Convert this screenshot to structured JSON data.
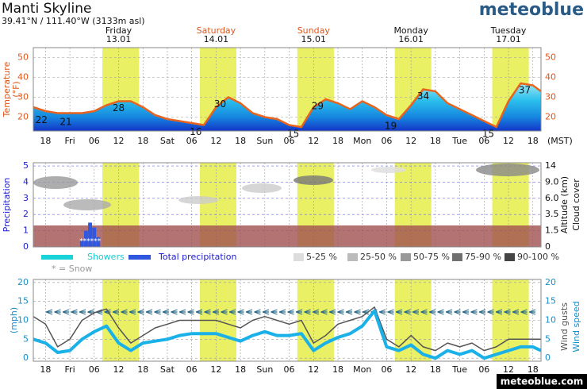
{
  "header": {
    "title": "Manti Skyline",
    "subtitle": "39.41°N / 111.40°W (3133m asl)",
    "brand": "meteoblue",
    "footer": "meteoblue.com",
    "timezone": "(MST)"
  },
  "days": [
    {
      "name": "Friday",
      "date": "13.01",
      "x": 18,
      "color": "#111111"
    },
    {
      "name": "Saturday",
      "date": "14.01",
      "x": 42,
      "color": "#e0561b"
    },
    {
      "name": "Sunday",
      "date": "15.01",
      "x": 66,
      "color": "#e0561b"
    },
    {
      "name": "Monday",
      "date": "16.01",
      "x": 90,
      "color": "#111111"
    },
    {
      "name": "Tuesday",
      "date": "17.01",
      "x": 114,
      "color": "#111111"
    }
  ],
  "daylight": [
    [
      14,
      23
    ],
    [
      38,
      47
    ],
    [
      62,
      71
    ],
    [
      86,
      95
    ],
    [
      110,
      119
    ]
  ],
  "xlim": [
    -3,
    122
  ],
  "xticks": [
    {
      "value": 0,
      "label": "18"
    },
    {
      "value": 6,
      "label": "Fri"
    },
    {
      "value": 12,
      "label": "06"
    },
    {
      "value": 18,
      "label": "12"
    },
    {
      "value": 24,
      "label": "18"
    },
    {
      "value": 30,
      "label": "Sat"
    },
    {
      "value": 36,
      "label": "06"
    },
    {
      "value": 42,
      "label": "12"
    },
    {
      "value": 48,
      "label": "18"
    },
    {
      "value": 54,
      "label": "Sun"
    },
    {
      "value": 60,
      "label": "06"
    },
    {
      "value": 66,
      "label": "12"
    },
    {
      "value": 72,
      "label": "18"
    },
    {
      "value": 78,
      "label": "Mon"
    },
    {
      "value": 84,
      "label": "06"
    },
    {
      "value": 90,
      "label": "12"
    },
    {
      "value": 96,
      "label": "18"
    },
    {
      "value": 102,
      "label": "Tue"
    },
    {
      "value": 108,
      "label": "06"
    },
    {
      "value": 114,
      "label": "12"
    },
    {
      "value": 120,
      "label": "18"
    }
  ],
  "chart_data": [
    {
      "type": "area",
      "ylabel": "Temperature",
      "ylabel_unit": "(°F)",
      "color": "#e8641e",
      "x": [
        -3,
        0,
        3,
        6,
        9,
        12,
        15,
        18,
        21,
        24,
        27,
        30,
        33,
        36,
        39,
        42,
        45,
        48,
        51,
        54,
        57,
        60,
        63,
        66,
        69,
        72,
        75,
        78,
        81,
        84,
        87,
        90,
        93,
        96,
        99,
        102,
        105,
        108,
        111,
        114,
        117,
        120,
        122
      ],
      "values": [
        25,
        23,
        22,
        22,
        22,
        23,
        26,
        28,
        28,
        25,
        21,
        19,
        18,
        17,
        16,
        25,
        30,
        27,
        22,
        20,
        19,
        16,
        15,
        25,
        29,
        27,
        24,
        28,
        25,
        21,
        19,
        26,
        34,
        33,
        27,
        24,
        21,
        18,
        15,
        28,
        37,
        36,
        33
      ],
      "ylim": [
        13,
        55
      ],
      "yticks": [
        20,
        30,
        40,
        50
      ],
      "temp_labels": [
        {
          "x": -1,
          "value": 22
        },
        {
          "x": 5,
          "value": 21
        },
        {
          "x": 18,
          "value": 28
        },
        {
          "x": 37,
          "value": 16
        },
        {
          "x": 43,
          "value": 30
        },
        {
          "x": 61,
          "value": 15
        },
        {
          "x": 67,
          "value": 29
        },
        {
          "x": 85,
          "value": 19
        },
        {
          "x": 93,
          "value": 34
        },
        {
          "x": 109,
          "value": 15
        },
        {
          "x": 118,
          "value": 37
        }
      ]
    },
    {
      "type": "bar",
      "ylabel": "Precipitation",
      "y2label": "Altitude (km)",
      "y2label2": "Cloud cover",
      "x": [
        9,
        10,
        11,
        12,
        13
      ],
      "series": [
        {
          "name": "Total precipitation",
          "color": "#2f57e0",
          "values": [
            0.4,
            1.0,
            1.5,
            1.2,
            0.6
          ]
        },
        {
          "name": "Showers",
          "color": "#19d3d8",
          "values": [
            0,
            0,
            0,
            0,
            0
          ]
        }
      ],
      "snow_note": "* = Snow",
      "snow_marks": "******",
      "ylim": [
        0,
        5.2
      ],
      "yticks": [
        0,
        1,
        2,
        3,
        4,
        5
      ],
      "y2ticks": [
        0,
        1.5,
        {
          "value": 3.5,
          "label": "3.5"
        },
        {
          "value": 6,
          "label": "6.0"
        },
        {
          "value": 9,
          "label": "9.0"
        },
        14
      ],
      "cloud_legend": [
        {
          "label": "5-25 %",
          "color": "#dddddd"
        },
        {
          "label": "25-50 %",
          "color": "#bbbbbb"
        },
        {
          "label": "50-75 %",
          "color": "#999999"
        },
        {
          "label": "75-90 %",
          "color": "#707070"
        },
        {
          "label": "90-100 %",
          "color": "#444444"
        }
      ]
    },
    {
      "type": "line",
      "ylabel": "(mph)",
      "y2label": "Wind gusts",
      "y2label2": "Wind speed",
      "x": [
        -3,
        0,
        3,
        6,
        9,
        12,
        15,
        18,
        21,
        24,
        27,
        30,
        33,
        36,
        39,
        42,
        45,
        48,
        51,
        54,
        57,
        60,
        63,
        66,
        69,
        72,
        75,
        78,
        81,
        84,
        87,
        90,
        93,
        96,
        99,
        102,
        105,
        108,
        111,
        114,
        117,
        120,
        122
      ],
      "series": [
        {
          "name": "Wind gusts",
          "color": "#555555",
          "values": [
            11,
            9,
            3,
            5,
            10,
            12,
            13,
            8,
            4,
            6,
            8,
            9,
            10,
            10,
            10,
            10,
            9,
            8,
            10,
            11,
            10,
            9,
            10,
            4,
            6,
            9,
            10,
            11,
            13.5,
            5,
            3,
            6,
            3,
            2,
            4,
            3,
            4,
            2,
            3,
            5,
            5,
            5,
            5
          ]
        },
        {
          "name": "Wind speed",
          "color": "#1ab0e8",
          "values": [
            5,
            4,
            1.5,
            2,
            5,
            7,
            8.5,
            4,
            2,
            4,
            4.5,
            5,
            6,
            6.5,
            6.5,
            6.5,
            5.5,
            4.5,
            6,
            7,
            6,
            6,
            6.5,
            2,
            4,
            5.5,
            6.5,
            8.5,
            12.5,
            3,
            2,
            3.5,
            1,
            0,
            2,
            1,
            2,
            0,
            1,
            2,
            3,
            3,
            2
          ]
        }
      ],
      "ylim": [
        -0.8,
        20.8
      ],
      "yticks": [
        0,
        5,
        10,
        15,
        20
      ]
    }
  ]
}
